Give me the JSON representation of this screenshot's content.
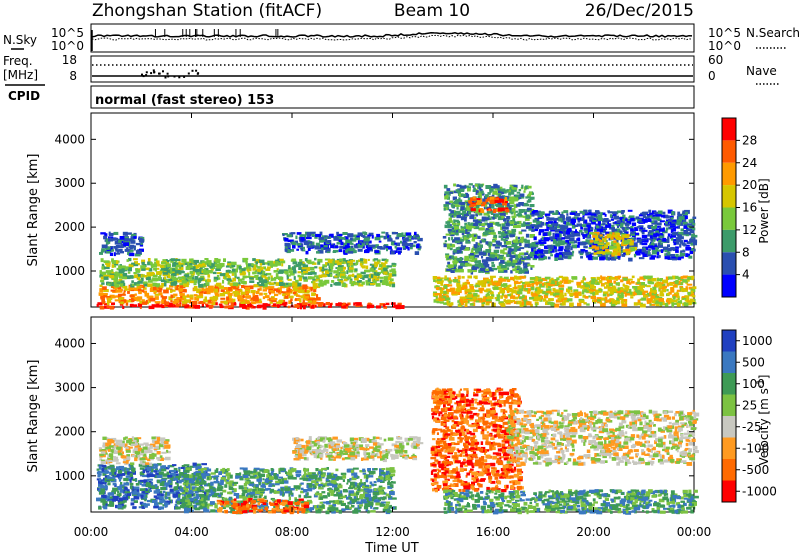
{
  "header": {
    "station": "Zhongshan Station (fitACF)",
    "beam": "Beam 10",
    "date": "26/Dec/2015"
  },
  "noise_panel": {
    "left_label": "N.Sky",
    "left_ticks": [
      "10^5",
      "10^0"
    ],
    "right_ticks": [
      "10^5",
      "10^0"
    ],
    "right_label": "N.Search"
  },
  "freq_panel": {
    "left_label_1": "Freq.",
    "left_label_2": "[MHz]",
    "left_ticks": [
      "18",
      "8"
    ],
    "right_ticks": [
      "60",
      "0"
    ],
    "right_label": "Nave"
  },
  "cpid": {
    "label": "CPID",
    "text": "normal (fast stereo) 153"
  },
  "chart_data": [
    {
      "type": "heatmap",
      "name": "power",
      "ylabel": "Slant Range [km]",
      "yticks": [
        "1000",
        "2000",
        "3000",
        "4000"
      ],
      "ylim": [
        180,
        4600
      ],
      "xlim": [
        0,
        24
      ],
      "colorbar_label": "Power [dB]",
      "colorbar_ticks": [
        "4",
        "8",
        "12",
        "16",
        "20",
        "24",
        "28"
      ],
      "colorbar_colors": [
        "#0000ff",
        "#2a4fb0",
        "#3c9b6a",
        "#79c93b",
        "#d6c600",
        "#ff9a00",
        "#ff5a00",
        "#ff0000"
      ],
      "regions": [
        {
          "t0": 0.2,
          "t1": 12.4,
          "r0": 200,
          "r1": 300,
          "level": 7
        },
        {
          "t0": 0.3,
          "t1": 9.0,
          "r0": 300,
          "r1": 700,
          "level": 5
        },
        {
          "t0": 0.3,
          "t1": 12.0,
          "r0": 700,
          "r1": 1300,
          "level": 3
        },
        {
          "t0": 0.3,
          "t1": 2.0,
          "r0": 1400,
          "r1": 1900,
          "level": 1
        },
        {
          "t0": 7.6,
          "t1": 13.0,
          "r0": 1450,
          "r1": 1900,
          "level": 1
        },
        {
          "t0": 13.6,
          "t1": 24.0,
          "r0": 250,
          "r1": 900,
          "level": 4
        },
        {
          "t0": 14.0,
          "t1": 17.5,
          "r0": 1000,
          "r1": 3000,
          "level": 2
        },
        {
          "t0": 17.5,
          "t1": 24.0,
          "r0": 1300,
          "r1": 2400,
          "level": 1
        },
        {
          "t0": 19.8,
          "t1": 21.5,
          "r0": 1400,
          "r1": 1900,
          "level": 4
        },
        {
          "t0": 15.0,
          "t1": 16.5,
          "r0": 2400,
          "r1": 2700,
          "level": 6
        }
      ]
    },
    {
      "type": "heatmap",
      "name": "velocity",
      "ylabel": "Slant Range [km]",
      "yticks": [
        "1000",
        "2000",
        "3000",
        "4000"
      ],
      "ylim": [
        180,
        4600
      ],
      "xlim": [
        0,
        24
      ],
      "xticks": [
        "00:00",
        "04:00",
        "08:00",
        "12:00",
        "16:00",
        "20:00",
        "00:00"
      ],
      "xlabel": "Time UT",
      "colorbar_label": "Velocity [m s^-1]",
      "colorbar_ticks": [
        "1000",
        "500",
        "100",
        "25",
        "-25",
        "-100",
        "-500",
        "-1000"
      ],
      "colorbar_colors": [
        "#2040c0",
        "#3a78c0",
        "#3e9a55",
        "#7cc242",
        "#c8c8c0",
        "#ff9a20",
        "#ff6a00",
        "#ff0000"
      ],
      "regions": [
        {
          "t0": 0.2,
          "t1": 4.5,
          "r0": 300,
          "r1": 1300,
          "level": 1
        },
        {
          "t0": 0.3,
          "t1": 3.0,
          "r0": 1300,
          "r1": 1900,
          "level": 4
        },
        {
          "t0": 3.5,
          "t1": 12.0,
          "r0": 200,
          "r1": 1200,
          "level": 2
        },
        {
          "t0": 5.0,
          "t1": 8.5,
          "r0": 200,
          "r1": 500,
          "level": 6
        },
        {
          "t0": 8.0,
          "t1": 13.0,
          "r0": 1400,
          "r1": 1900,
          "level": 4
        },
        {
          "t0": 13.5,
          "t1": 17.0,
          "r0": 700,
          "r1": 3000,
          "level": 6
        },
        {
          "t0": 14.0,
          "t1": 24.0,
          "r0": 200,
          "r1": 700,
          "level": 2
        },
        {
          "t0": 16.5,
          "t1": 24.0,
          "r0": 1300,
          "r1": 2500,
          "level": 4
        }
      ]
    }
  ]
}
